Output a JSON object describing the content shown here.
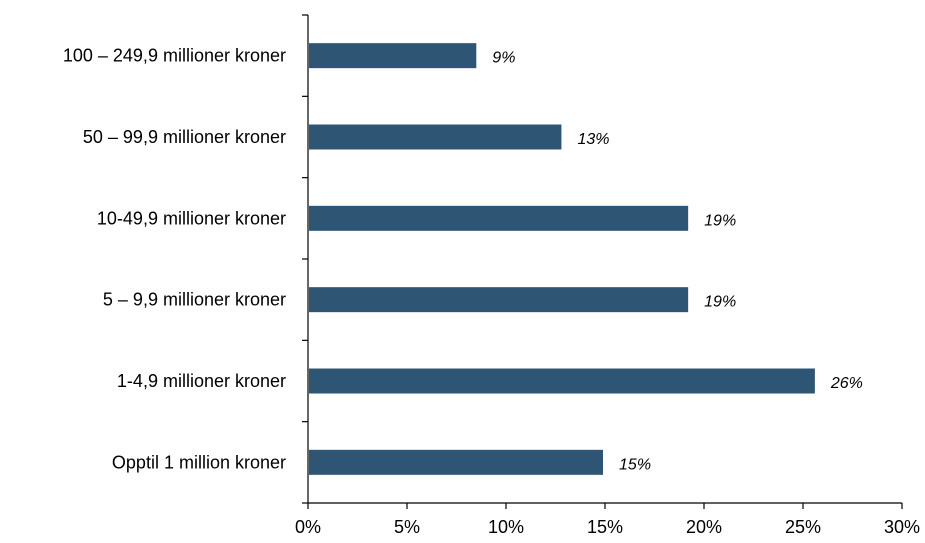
{
  "chart_data": {
    "type": "bar",
    "orientation": "horizontal",
    "categories": [
      "100 – 249,9 millioner kroner",
      "50 – 99,9 millioner kroner",
      "10-49,9 millioner kroner",
      "5 – 9,9 millioner kroner",
      "1-4,9 millioner kroner",
      "Opptil 1 million kroner"
    ],
    "values": [
      8.5,
      12.8,
      19.2,
      19.2,
      25.6,
      14.9
    ],
    "data_labels": [
      "9%",
      "13%",
      "19%",
      "19%",
      "26%",
      "15%"
    ],
    "xlim": [
      0,
      30
    ],
    "xticks": [
      0,
      5,
      10,
      15,
      20,
      25,
      30
    ],
    "xtick_labels": [
      "0%",
      "5%",
      "10%",
      "15%",
      "20%",
      "25%",
      "30%"
    ],
    "title": "",
    "xlabel": "",
    "ylabel": "",
    "grid": false,
    "legend": "none",
    "bar_color": "#2f5574"
  }
}
